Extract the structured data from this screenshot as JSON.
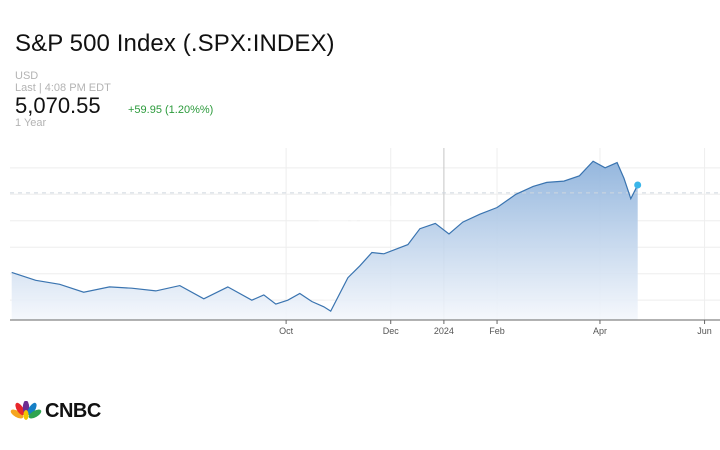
{
  "header": {
    "title": "S&P 500 Index (.SPX:INDEX)",
    "currency": "USD",
    "last_update": "Last | 4:08 PM EDT",
    "price": "5,070.55",
    "change": "+59.95 (1.20%%)",
    "range": "1 Year"
  },
  "brand": {
    "name": "CNBC",
    "watermark": "CNBC"
  },
  "colors": {
    "line": "#3a74b0",
    "area_top": "#8fb3dc",
    "area_bottom": "#f4f7fc",
    "positive": "#2b9a3b",
    "dot": "#3ab6ea"
  },
  "chart_data": {
    "type": "area",
    "title": "S&P 500 Index (.SPX:INDEX)",
    "x_axis_ticks": [
      "Oct",
      "Dec",
      "2024",
      "Feb",
      "Apr",
      "Jun"
    ],
    "x_axis_dates": [
      "2023-10-01",
      "2023-12-01",
      "2024-01-01",
      "2024-02-01",
      "2024-04-01",
      "2024-06-01"
    ],
    "x_range": [
      "2023-04-23",
      "2024-06-10"
    ],
    "y_range": [
      4050,
      5350
    ],
    "grid": true,
    "reference_line": 5010.6,
    "series": [
      {
        "x": [
          "2023-04-24",
          "2023-05-08",
          "2023-05-22",
          "2023-06-05",
          "2023-06-20",
          "2023-07-03",
          "2023-07-17",
          "2023-07-31",
          "2023-08-14",
          "2023-08-28",
          "2023-09-11",
          "2023-09-18",
          "2023-09-25",
          "2023-10-02",
          "2023-10-09",
          "2023-10-16",
          "2023-10-23",
          "2023-10-27",
          "2023-11-06",
          "2023-11-13",
          "2023-11-20",
          "2023-11-27",
          "2023-12-11",
          "2023-12-18",
          "2023-12-27",
          "2024-01-04",
          "2024-01-12",
          "2024-01-22",
          "2024-02-01",
          "2024-02-12",
          "2024-02-22",
          "2024-03-01",
          "2024-03-11",
          "2024-03-20",
          "2024-03-28",
          "2024-04-04",
          "2024-04-11",
          "2024-04-15",
          "2024-04-19",
          "2024-04-23"
        ],
        "values": [
          4410,
          4350,
          4320,
          4260,
          4300,
          4290,
          4270,
          4310,
          4210,
          4300,
          4200,
          4240,
          4170,
          4200,
          4250,
          4190,
          4150,
          4117,
          4370,
          4460,
          4560,
          4550,
          4620,
          4740,
          4780,
          4700,
          4790,
          4850,
          4900,
          5000,
          5060,
          5090,
          5100,
          5140,
          5250,
          5200,
          5240,
          5120,
          4967,
          5070.55
        ]
      }
    ]
  }
}
